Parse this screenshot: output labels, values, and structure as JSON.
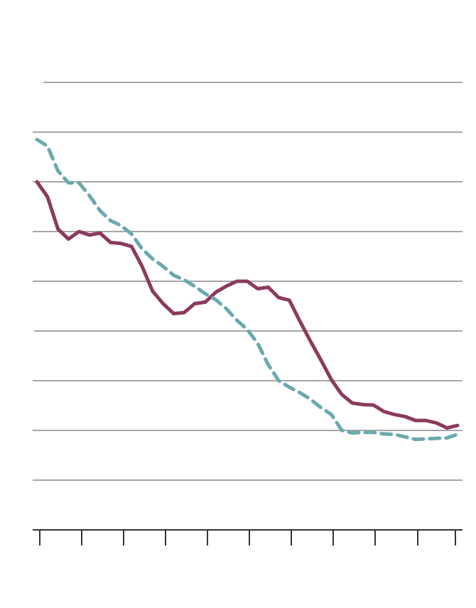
{
  "chart_data": {
    "type": "line",
    "title": "",
    "xlabel": "",
    "ylabel": "",
    "x": [
      0,
      1,
      2,
      3,
      4,
      5,
      6,
      7,
      8,
      9,
      10,
      11,
      12,
      13,
      14,
      15,
      16,
      17,
      18,
      19,
      20,
      21,
      22,
      23,
      24,
      25,
      26,
      27,
      28,
      29,
      30,
      31,
      32,
      33,
      34,
      35,
      36,
      37,
      38,
      39,
      40
    ],
    "xlim": [
      0,
      40
    ],
    "ylim": [
      0,
      9
    ],
    "yticks": [
      0,
      1,
      2,
      3,
      4,
      5,
      6,
      7,
      8,
      9
    ],
    "xtick_count": 11,
    "grid": true,
    "series": [
      {
        "name": "",
        "color": "#8b3a5e",
        "dash": "solid",
        "values": [
          7.0,
          6.7,
          6.05,
          5.85,
          6.0,
          5.93,
          5.97,
          5.78,
          5.76,
          5.7,
          5.3,
          4.8,
          4.55,
          4.35,
          4.37,
          4.55,
          4.58,
          4.78,
          4.9,
          5.0,
          5.0,
          4.85,
          4.88,
          4.67,
          4.62,
          4.2,
          3.8,
          3.42,
          3.02,
          2.72,
          2.55,
          2.52,
          2.51,
          2.38,
          2.32,
          2.28,
          2.2,
          2.2,
          2.15,
          2.05,
          2.1
        ]
      },
      {
        "name": "",
        "color": "#6aa9ad",
        "dash": "dashed",
        "values": [
          7.85,
          7.72,
          7.22,
          6.98,
          6.98,
          6.72,
          6.42,
          6.22,
          6.12,
          5.95,
          5.65,
          5.45,
          5.3,
          5.12,
          5.03,
          4.9,
          4.75,
          4.63,
          4.45,
          4.22,
          4.03,
          3.75,
          3.32,
          3.0,
          2.87,
          2.76,
          2.63,
          2.46,
          2.32,
          2.0,
          1.95,
          1.96,
          1.96,
          1.93,
          1.92,
          1.87,
          1.82,
          1.83,
          1.84,
          1.85,
          1.92
        ]
      }
    ]
  }
}
